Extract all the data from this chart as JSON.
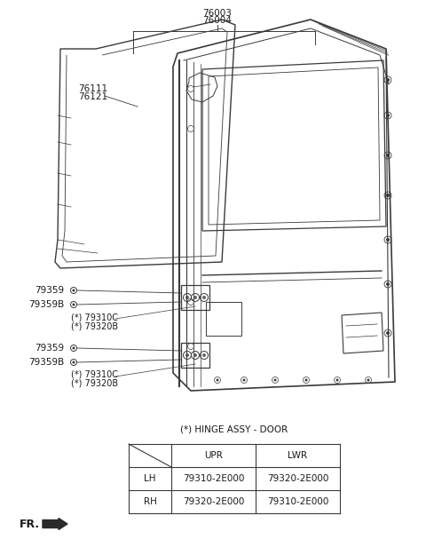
{
  "bg_color": "#ffffff",
  "part_numbers_top": [
    "76003",
    "76004"
  ],
  "part_numbers_left": [
    "76111",
    "76121"
  ],
  "hinge_label": "(*) HINGE ASSY - DOOR",
  "table_header_row": [
    "",
    "UPR",
    "LWR"
  ],
  "table_data": [
    [
      "LH",
      "79310-2E000",
      "79320-2E000"
    ],
    [
      "RH",
      "79320-2E000",
      "79310-2E000"
    ]
  ],
  "label_79359_1": "79359",
  "label_79359B_1": "79359B",
  "label_79310C_1": "(*) 79310C",
  "label_79320B_1": "(*) 79320B",
  "label_79359_2": "79359",
  "label_79359B_2": "79359B",
  "label_79310C_2": "(*) 79310C",
  "label_79320B_2": "(*) 79320B",
  "label_76111": "76111",
  "label_76121": "76121",
  "fr_label": "FR.",
  "text_color": "#1a1a1a",
  "line_color": "#3a3a3a"
}
